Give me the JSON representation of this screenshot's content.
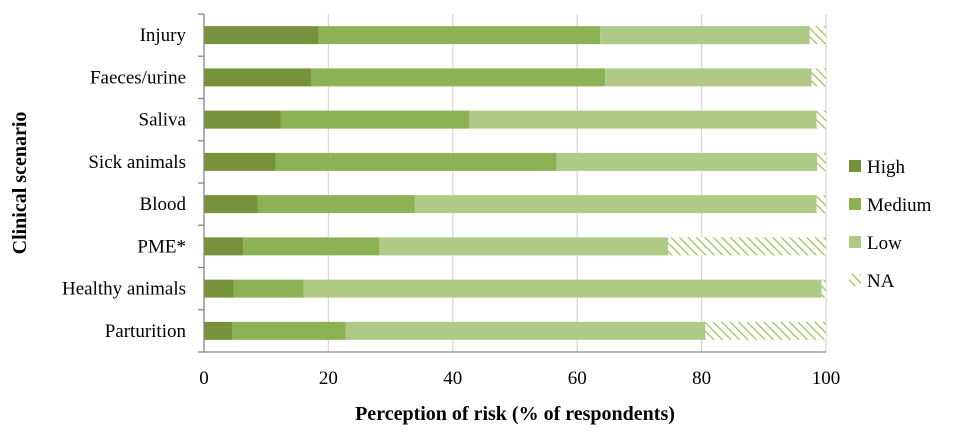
{
  "chart_data": {
    "type": "bar",
    "orientation": "horizontal",
    "stacked": true,
    "categories": [
      "Injury",
      "Faeces/urine",
      "Saliva",
      "Sick animals",
      "Blood",
      "PME*",
      "Healthy animals",
      "Parturition"
    ],
    "series": [
      {
        "name": "High",
        "values": [
          18.4,
          17.2,
          12.3,
          11.5,
          8.6,
          6.3,
          4.8,
          4.5
        ]
      },
      {
        "name": "Medium",
        "values": [
          45.3,
          47.3,
          30.4,
          45.2,
          25.3,
          21.9,
          11.2,
          18.3
        ]
      },
      {
        "name": "Low",
        "values": [
          33.7,
          33.2,
          55.8,
          41.9,
          64.6,
          46.4,
          83.3,
          57.8
        ]
      },
      {
        "name": "NA",
        "values": [
          2.6,
          2.3,
          1.5,
          1.4,
          1.5,
          25.4,
          0.7,
          19.4
        ]
      }
    ],
    "xlabel": "Perception of risk (% of respondents)",
    "ylabel": "Clinical scenario",
    "xlim": [
      0,
      100
    ],
    "xticks": [
      0,
      20,
      40,
      60,
      80,
      100
    ],
    "grid": "vertical",
    "legend": "right",
    "colors": {
      "High": "#76923c",
      "Medium": "#8db255",
      "Low": "#afca86",
      "NA": "#9bbb59",
      "grid": "#d9d9d9",
      "axis": "#868686"
    }
  }
}
